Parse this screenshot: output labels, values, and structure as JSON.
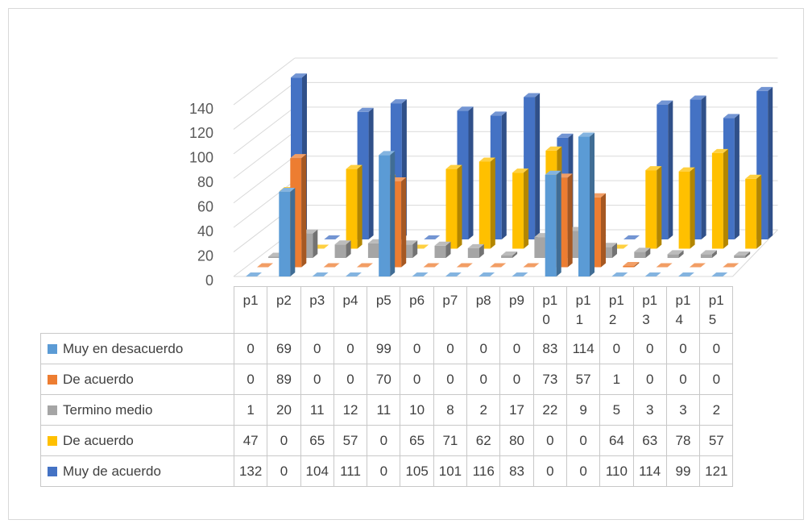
{
  "chart_data": {
    "type": "bar3d",
    "categories": [
      "p1",
      "p2",
      "p3",
      "p4",
      "p5",
      "p6",
      "p7",
      "p8",
      "p9",
      "p10",
      "p11",
      "p12",
      "p13",
      "p14",
      "p15"
    ],
    "series": [
      {
        "name": "Muy en desacuerdo",
        "color": "#5b9bd5",
        "values": [
          0,
          69,
          0,
          0,
          99,
          0,
          0,
          0,
          0,
          83,
          114,
          0,
          0,
          0,
          0
        ]
      },
      {
        "name": "De acuerdo",
        "color": "#ed7d31",
        "values": [
          0,
          89,
          0,
          0,
          70,
          0,
          0,
          0,
          0,
          73,
          57,
          1,
          0,
          0,
          0
        ]
      },
      {
        "name": "Termino medio",
        "color": "#a5a5a5",
        "values": [
          1,
          20,
          11,
          12,
          11,
          10,
          8,
          2,
          17,
          22,
          9,
          5,
          3,
          3,
          2
        ]
      },
      {
        "name": "De acuerdo",
        "color": "#ffc000",
        "values": [
          47,
          0,
          65,
          57,
          0,
          65,
          71,
          62,
          80,
          0,
          0,
          64,
          63,
          78,
          57
        ]
      },
      {
        "name": "Muy de acuerdo",
        "color": "#4472c4",
        "values": [
          132,
          0,
          104,
          111,
          0,
          105,
          101,
          116,
          83,
          0,
          0,
          110,
          114,
          99,
          121
        ]
      }
    ],
    "ylim": [
      0,
      140
    ],
    "yticks": [
      0,
      20,
      40,
      60,
      80,
      100,
      120,
      140
    ],
    "grid": true,
    "data_table": true
  }
}
